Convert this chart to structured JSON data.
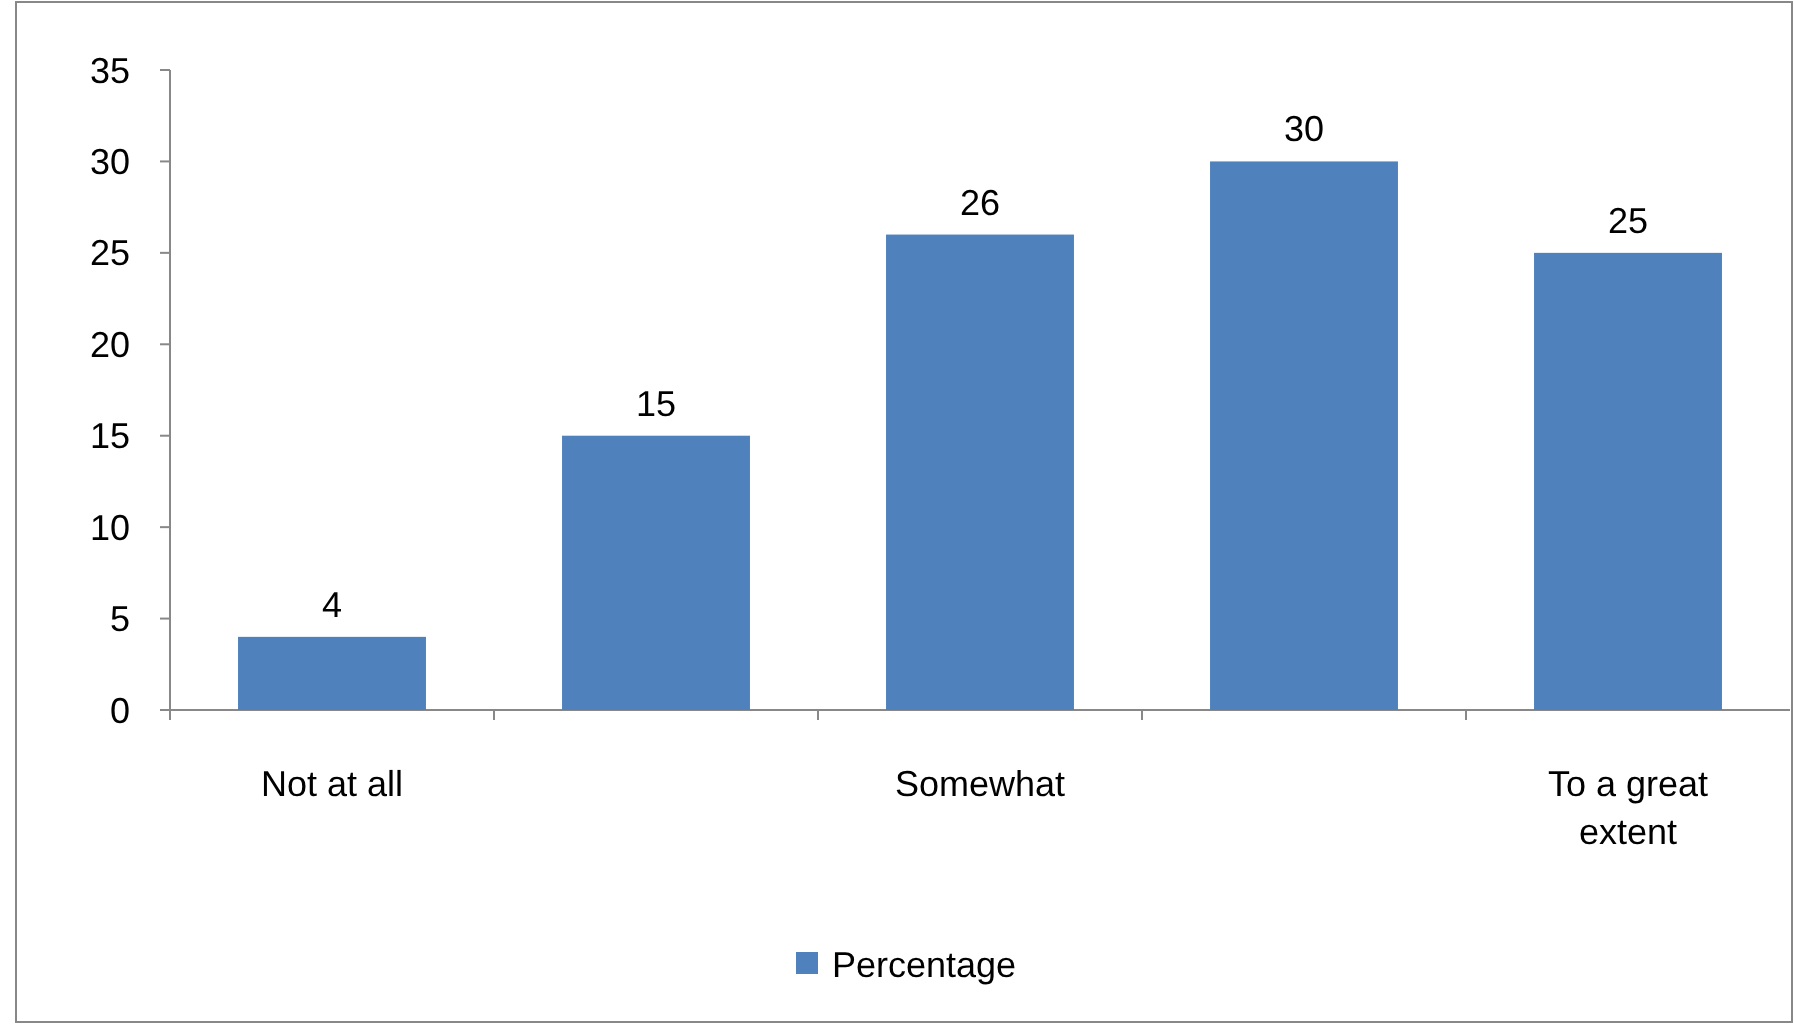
{
  "chart_data": {
    "type": "bar",
    "categories": [
      "Not at all",
      null,
      "Somewhat",
      null,
      "To a great extent"
    ],
    "series": [
      {
        "name": "Percentage",
        "color": "#4f81bd",
        "values": [
          4,
          15,
          26,
          30,
          25
        ]
      }
    ],
    "ylim": [
      0,
      35
    ],
    "yticks": [
      0,
      5,
      10,
      15,
      20,
      25,
      30,
      35
    ],
    "data_labels": true,
    "legend": "bottom",
    "grid": false
  }
}
